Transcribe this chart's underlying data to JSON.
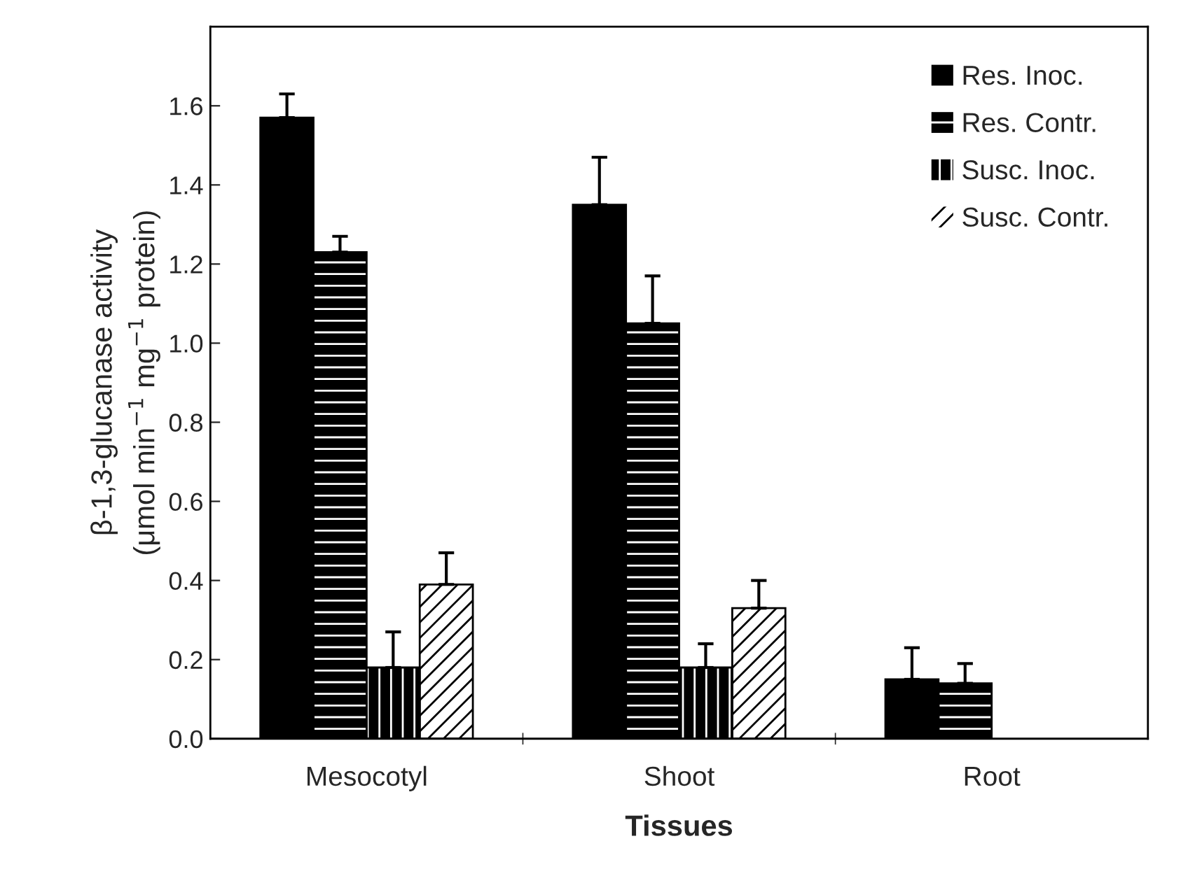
{
  "chart_data": {
    "type": "bar",
    "xlabel": "Tissues",
    "ylabel": "β-1,3-glucanase activity\n(μmol min$^{−1}$ mg$^{−1}$ protein)",
    "categories": [
      "Mesocotyl",
      "Shoot",
      "Root"
    ],
    "series": [
      {
        "name": "Res. Inoc.",
        "color": "#000000",
        "values": [
          1.57,
          1.35,
          0.15
        ],
        "errors": [
          [
            1.57,
            1.63
          ],
          [
            1.35,
            1.47
          ],
          [
            0.15,
            0.23
          ]
        ]
      },
      {
        "name": "Res. Contr.",
        "color": "#000000",
        "values": [
          1.23,
          1.05,
          0.14
        ],
        "errors": [
          [
            1.23,
            1.27
          ],
          [
            1.05,
            1.17
          ],
          [
            0.14,
            0.19
          ]
        ]
      },
      {
        "name": "Susc. Inoc.",
        "color": "#000000",
        "values": [
          0.18,
          0.18,
          null
        ],
        "errors": [
          [
            0.18,
            0.27
          ],
          [
            0.18,
            0.24
          ],
          null
        ]
      },
      {
        "name": "Susc. Contr.",
        "color": "#ffffff",
        "values": [
          0.39,
          0.33,
          null
        ],
        "errors": [
          [
            0.39,
            0.47
          ],
          [
            0.33,
            0.4
          ],
          null
        ]
      }
    ],
    "ylim": [
      0,
      1.8
    ],
    "yticks": [
      {
        "value": 0,
        "label": "0.0"
      },
      {
        "value": 0.2,
        "label": "0.2"
      },
      {
        "value": 0.4,
        "label": "0.4"
      },
      {
        "value": 0.6,
        "label": "0.6"
      },
      {
        "value": 0.8,
        "label": "0.8"
      },
      {
        "value": 1.0,
        "label": "1.0"
      },
      {
        "value": 1.2,
        "label": "1.2"
      },
      {
        "value": 1.4,
        "label": "1.4"
      },
      {
        "value": 1.6,
        "label": "1.6"
      }
    ],
    "grid": false,
    "legend": "top right"
  }
}
